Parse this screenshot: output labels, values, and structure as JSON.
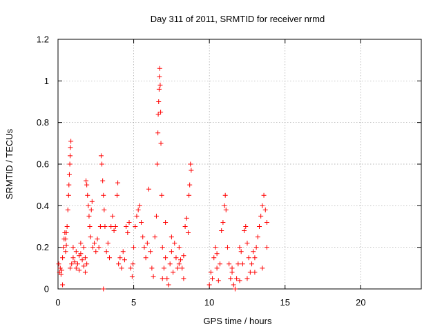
{
  "chart_data": {
    "type": "scatter",
    "title": "Day 311 of 2011, SRMTID for receiver nrmd",
    "xlabel": "GPS time / hours",
    "ylabel": "SRMTID / TECUs",
    "xlim": [
      0,
      24
    ],
    "ylim": [
      0,
      1.2
    ],
    "xticks": [
      0,
      5,
      10,
      15,
      20
    ],
    "xtick_labels": [
      "0",
      "5",
      "10",
      "15",
      "20"
    ],
    "yticks": [
      0,
      0.2,
      0.4,
      0.6,
      0.8,
      1,
      1.2
    ],
    "ytick_labels": [
      "0",
      "0.2",
      "0.4",
      "0.6",
      "0.8",
      "1",
      "1.2"
    ],
    "grid": true,
    "marker": "+",
    "series": [
      {
        "name": "nrmd",
        "color": "#ff0000",
        "points": [
          [
            0.05,
            0.12
          ],
          [
            0.1,
            0.08
          ],
          [
            0.15,
            0.1
          ],
          [
            0.2,
            0.07
          ],
          [
            0.25,
            0.09
          ],
          [
            0.3,
            0.02
          ],
          [
            0.3,
            0.15
          ],
          [
            0.35,
            0.2
          ],
          [
            0.4,
            0.24
          ],
          [
            0.45,
            0.27
          ],
          [
            0.5,
            0.24
          ],
          [
            0.55,
            0.21
          ],
          [
            0.55,
            0.27
          ],
          [
            0.5,
            0.18
          ],
          [
            0.6,
            0.3
          ],
          [
            0.65,
            0.38
          ],
          [
            0.7,
            0.45
          ],
          [
            0.72,
            0.5
          ],
          [
            0.75,
            0.55
          ],
          [
            0.78,
            0.6
          ],
          [
            0.8,
            0.64
          ],
          [
            0.82,
            0.68
          ],
          [
            0.85,
            0.71
          ],
          [
            0.8,
            0.1
          ],
          [
            0.9,
            0.12
          ],
          [
            1.0,
            0.15
          ],
          [
            1.1,
            0.13
          ],
          [
            1.2,
            0.18
          ],
          [
            1.3,
            0.12
          ],
          [
            1.4,
            0.16
          ],
          [
            1.5,
            0.22
          ],
          [
            1.6,
            0.14
          ],
          [
            1.7,
            0.2
          ],
          [
            1.8,
            0.08
          ],
          [
            1.9,
            0.12
          ],
          [
            1.0,
            0.2
          ],
          [
            1.2,
            0.1
          ],
          [
            1.4,
            0.09
          ],
          [
            1.5,
            0.17
          ],
          [
            1.7,
            0.11
          ],
          [
            1.8,
            0.15
          ],
          [
            1.85,
            0.52
          ],
          [
            1.9,
            0.5
          ],
          [
            1.95,
            0.45
          ],
          [
            2.0,
            0.4
          ],
          [
            2.05,
            0.35
          ],
          [
            2.1,
            0.3
          ],
          [
            2.15,
            0.25
          ],
          [
            2.2,
            0.38
          ],
          [
            2.25,
            0.42
          ],
          [
            2.3,
            0.2
          ],
          [
            2.4,
            0.22
          ],
          [
            2.5,
            0.18
          ],
          [
            2.6,
            0.24
          ],
          [
            2.7,
            0.2
          ],
          [
            2.8,
            0.3
          ],
          [
            2.85,
            0.64
          ],
          [
            2.9,
            0.6
          ],
          [
            2.95,
            0.52
          ],
          [
            3.0,
            0.45
          ],
          [
            3.05,
            0.38
          ],
          [
            3.1,
            0.3
          ],
          [
            3.0,
            0.0
          ],
          [
            3.2,
            0.18
          ],
          [
            3.3,
            0.22
          ],
          [
            3.4,
            0.15
          ],
          [
            3.5,
            0.3
          ],
          [
            3.6,
            0.35
          ],
          [
            3.7,
            0.28
          ],
          [
            3.8,
            0.3
          ],
          [
            3.9,
            0.45
          ],
          [
            3.95,
            0.51
          ],
          [
            4.0,
            0.12
          ],
          [
            4.1,
            0.15
          ],
          [
            4.2,
            0.1
          ],
          [
            4.3,
            0.18
          ],
          [
            4.4,
            0.14
          ],
          [
            4.5,
            0.3
          ],
          [
            4.6,
            0.27
          ],
          [
            4.7,
            0.32
          ],
          [
            4.8,
            0.1
          ],
          [
            4.9,
            0.06
          ],
          [
            4.95,
            0.12
          ],
          [
            5.0,
            0.2
          ],
          [
            5.1,
            0.3
          ],
          [
            5.2,
            0.35
          ],
          [
            5.3,
            0.38
          ],
          [
            5.4,
            0.4
          ],
          [
            5.5,
            0.32
          ],
          [
            5.6,
            0.25
          ],
          [
            5.7,
            0.2
          ],
          [
            5.8,
            0.15
          ],
          [
            5.9,
            0.22
          ],
          [
            6.0,
            0.48
          ],
          [
            6.1,
            0.18
          ],
          [
            6.2,
            0.1
          ],
          [
            6.3,
            0.06
          ],
          [
            6.4,
            0.25
          ],
          [
            6.5,
            0.35
          ],
          [
            6.55,
            0.6
          ],
          [
            6.6,
            0.75
          ],
          [
            6.62,
            0.84
          ],
          [
            6.65,
            0.9
          ],
          [
            6.68,
            0.96
          ],
          [
            6.7,
            1.02
          ],
          [
            6.72,
            1.06
          ],
          [
            6.75,
            0.98
          ],
          [
            6.78,
            0.85
          ],
          [
            6.8,
            0.7
          ],
          [
            6.85,
            0.45
          ],
          [
            6.9,
            0.2
          ],
          [
            6.9,
            0.05
          ],
          [
            7.0,
            0.1
          ],
          [
            7.1,
            0.15
          ],
          [
            7.2,
            0.05
          ],
          [
            7.3,
            0.02
          ],
          [
            7.4,
            0.12
          ],
          [
            7.5,
            0.18
          ],
          [
            7.6,
            0.08
          ],
          [
            7.7,
            0.22
          ],
          [
            7.8,
            0.15
          ],
          [
            7.9,
            0.1
          ],
          [
            8.0,
            0.2
          ],
          [
            8.1,
            0.14
          ],
          [
            8.2,
            0.1
          ],
          [
            8.3,
            0.05
          ],
          [
            8.4,
            0.3
          ],
          [
            8.5,
            0.34
          ],
          [
            8.6,
            0.27
          ],
          [
            8.65,
            0.45
          ],
          [
            8.7,
            0.5
          ],
          [
            8.75,
            0.6
          ],
          [
            8.8,
            0.57
          ],
          [
            7.1,
            0.32
          ],
          [
            7.5,
            0.25
          ],
          [
            8.0,
            0.12
          ],
          [
            8.3,
            0.16
          ],
          [
            10.0,
            0.02
          ],
          [
            10.1,
            0.08
          ],
          [
            10.2,
            0.05
          ],
          [
            10.3,
            0.15
          ],
          [
            10.4,
            0.2
          ],
          [
            10.5,
            0.1
          ],
          [
            10.6,
            0.04
          ],
          [
            10.7,
            0.12
          ],
          [
            10.8,
            0.28
          ],
          [
            10.9,
            0.32
          ],
          [
            11.0,
            0.4
          ],
          [
            11.05,
            0.45
          ],
          [
            11.1,
            0.38
          ],
          [
            11.2,
            0.2
          ],
          [
            11.3,
            0.12
          ],
          [
            11.4,
            0.05
          ],
          [
            11.5,
            0.1
          ],
          [
            11.6,
            0.02
          ],
          [
            11.7,
            0.0
          ],
          [
            11.8,
            0.05
          ],
          [
            11.9,
            0.12
          ],
          [
            12.0,
            0.2
          ],
          [
            12.1,
            0.18
          ],
          [
            12.2,
            0.12
          ],
          [
            12.3,
            0.28
          ],
          [
            12.4,
            0.3
          ],
          [
            12.5,
            0.22
          ],
          [
            12.6,
            0.15
          ],
          [
            12.7,
            0.08
          ],
          [
            12.8,
            0.12
          ],
          [
            12.9,
            0.18
          ],
          [
            13.0,
            0.15
          ],
          [
            13.1,
            0.2
          ],
          [
            13.2,
            0.25
          ],
          [
            13.3,
            0.3
          ],
          [
            13.4,
            0.35
          ],
          [
            13.5,
            0.4
          ],
          [
            13.6,
            0.45
          ],
          [
            13.7,
            0.38
          ],
          [
            13.8,
            0.32
          ],
          [
            10.5,
            0.17
          ],
          [
            11.5,
            0.08
          ],
          [
            12.0,
            0.04
          ],
          [
            12.5,
            0.05
          ],
          [
            13.0,
            0.08
          ],
          [
            13.5,
            0.1
          ],
          [
            13.8,
            0.2
          ]
        ]
      }
    ]
  }
}
